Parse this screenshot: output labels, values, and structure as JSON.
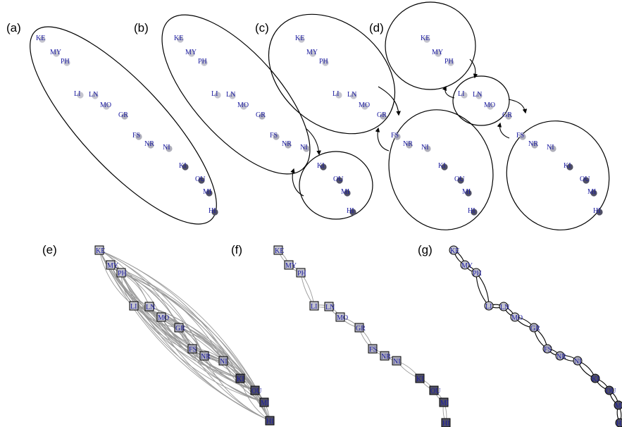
{
  "panel_labels": [
    "(a)",
    "(b)",
    "(c)",
    "(d)",
    "(e)",
    "(f)",
    "(g)"
  ],
  "nodes": [
    {
      "code": "KE",
      "shade": "#c4c4ce"
    },
    {
      "code": "MY",
      "shade": "#c4c4ce"
    },
    {
      "code": "PH",
      "shade": "#c4c4ce"
    },
    {
      "code": "LI",
      "shade": "#c4c4ce"
    },
    {
      "code": "LN",
      "shade": "#c4c4ce"
    },
    {
      "code": "MO",
      "shade": "#c4c4ce"
    },
    {
      "code": "GR",
      "shade": "#b0b0bb"
    },
    {
      "code": "FS",
      "shade": "#aeaeba"
    },
    {
      "code": "NR",
      "shade": "#aeaeba"
    },
    {
      "code": "NI",
      "shade": "#aeaeba"
    },
    {
      "code": "KI",
      "shade": "#505064"
    },
    {
      "code": "OU",
      "shade": "#505064"
    },
    {
      "code": "MI",
      "shade": "#505064"
    },
    {
      "code": "HI",
      "shade": "#505064"
    }
  ],
  "legend_colors": {
    "ellipse": "#000000",
    "grey_edges": "#9a9a9a",
    "label_text": "#1a1aa0"
  }
}
